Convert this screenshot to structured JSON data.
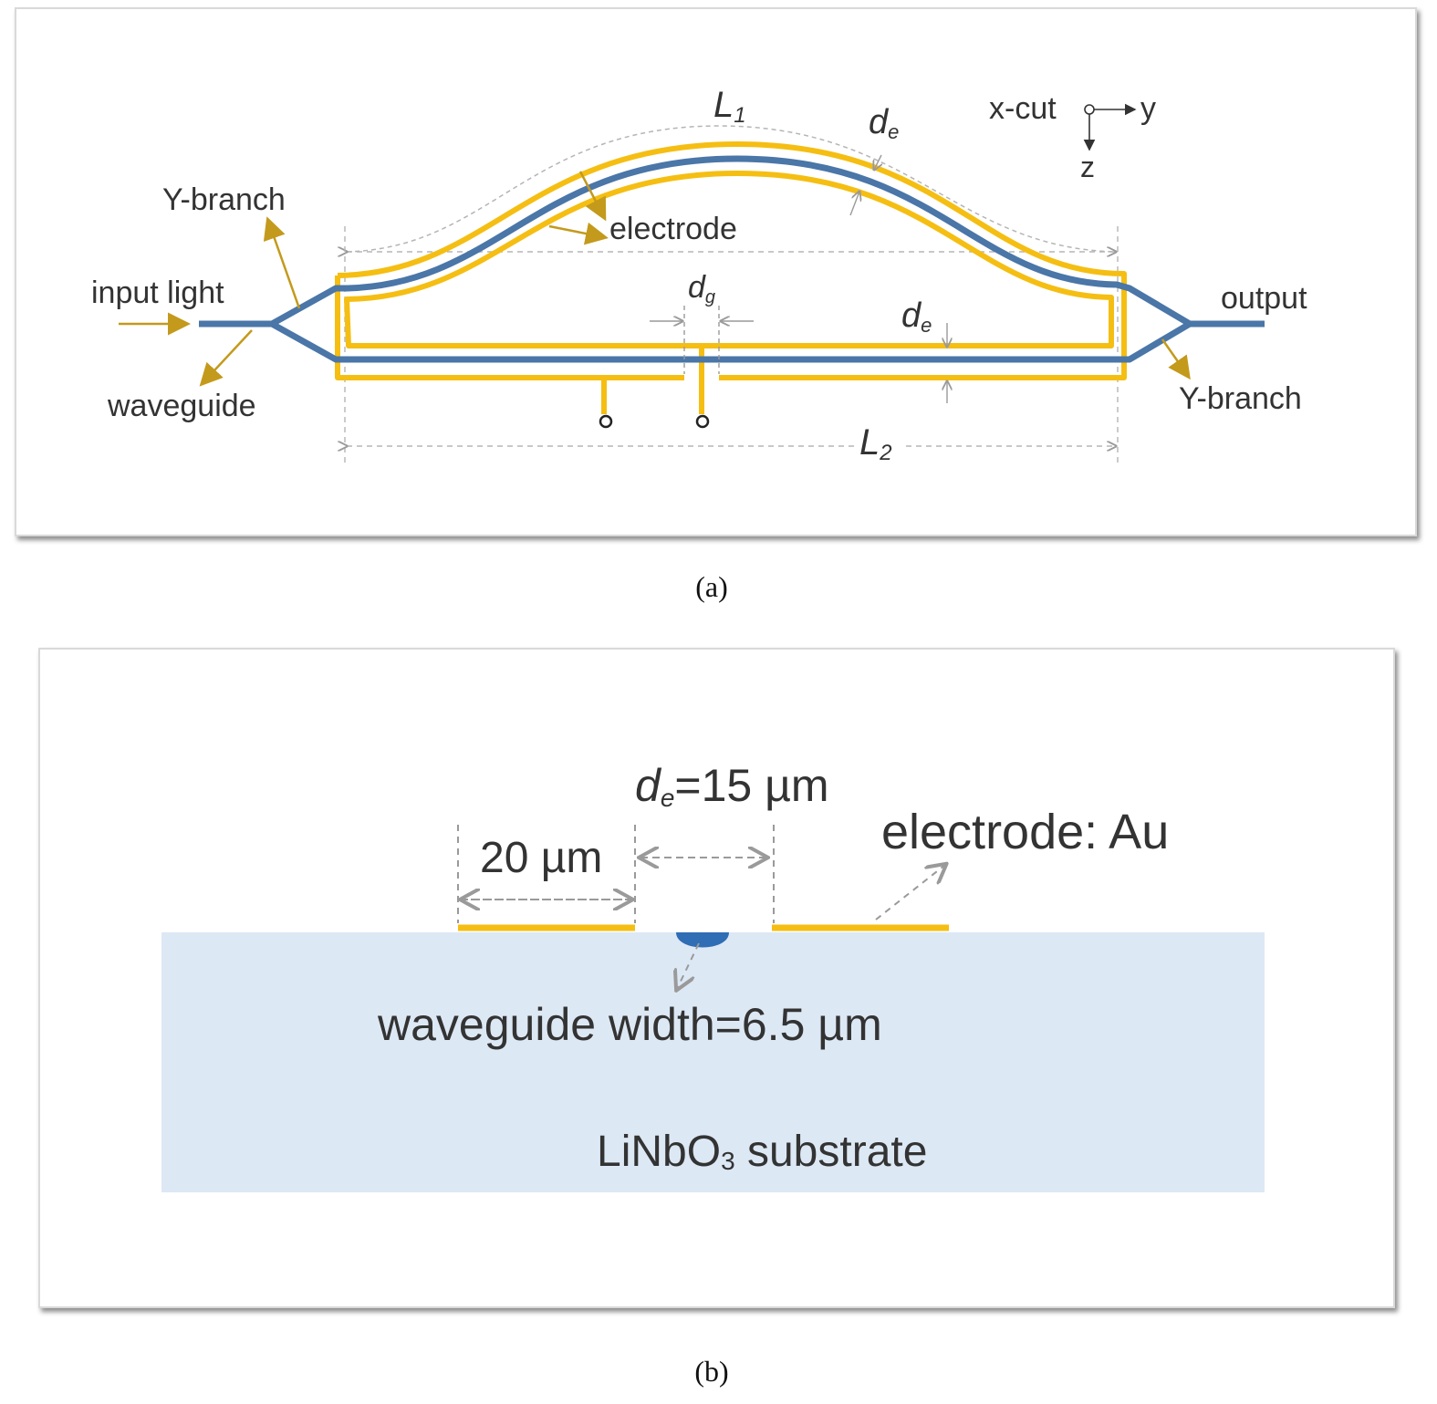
{
  "panel_a": {
    "caption": "(a)",
    "labels": {
      "l1": "L",
      "l1_sub": "1",
      "l2": "L",
      "l2_sub": "2",
      "de_top": "d",
      "de_top_sub": "e",
      "de_mid": "d",
      "de_mid_sub": "e",
      "dg": "d",
      "dg_sub": "g",
      "x_cut": "x-cut",
      "axis_y": "y",
      "axis_z": "z",
      "y_branch_left": "Y-branch",
      "y_branch_right": "Y-branch",
      "input_light": "input light",
      "waveguide": "waveguide",
      "electrode": "electrode",
      "output": "output"
    }
  },
  "panel_b": {
    "caption": "(b)",
    "labels": {
      "de_eq": "d",
      "de_eq_sub": "e",
      "de_eq_value": "=15 µm",
      "width_20": "20 µm",
      "electrode_au": "electrode: Au",
      "waveguide_width": "waveguide width=6.5 µm",
      "substrate_pre": "LiNbO",
      "substrate_sub": "3",
      "substrate_post": " substrate"
    }
  },
  "colors": {
    "electrode": "#F5BE12",
    "waveguide": "#4A76A8",
    "arrow": "#C49A1C",
    "dim": "#aaaaaa",
    "substrate": "#DDE8F5",
    "waveguide_dot": "#2F6DB5"
  }
}
